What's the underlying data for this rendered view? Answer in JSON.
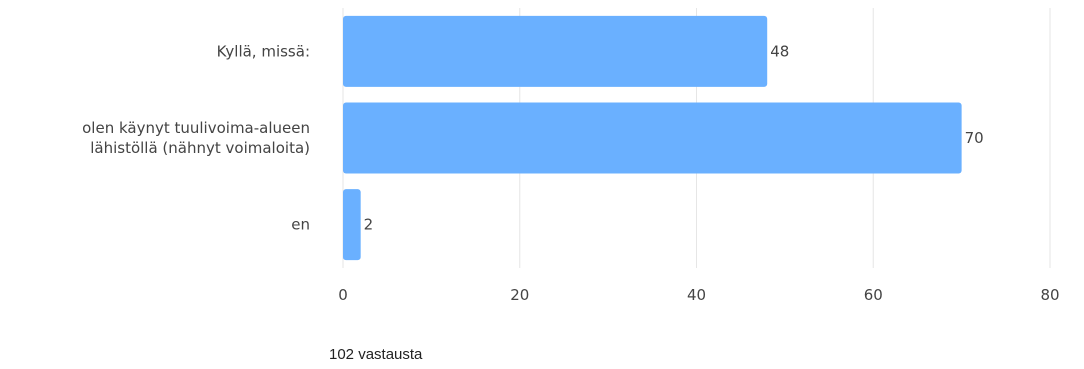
{
  "chart_data": {
    "type": "bar",
    "orientation": "horizontal",
    "categories": [
      "Kyllä, missä:",
      "olen käynyt tuulivoima-alueen lähistöllä (nähnyt voimaloita)",
      "en"
    ],
    "category_lines": [
      [
        "Kyllä, missä:"
      ],
      [
        "olen käynyt tuulivoima-alueen",
        "lähistöllä (nähnyt voimaloita)"
      ],
      [
        "en"
      ]
    ],
    "values": [
      48,
      70,
      2
    ],
    "value_labels": [
      "48",
      "70",
      "2"
    ],
    "xlim": [
      0,
      80
    ],
    "xticks": [
      0,
      20,
      40,
      60,
      80
    ],
    "xtick_labels": [
      "0",
      "20",
      "40",
      "60",
      "80"
    ],
    "grid": "vertical",
    "bar_color": "#6ab0ff",
    "grid_color": "#e6e6e6"
  },
  "footer": {
    "responses": "102 vastausta"
  }
}
